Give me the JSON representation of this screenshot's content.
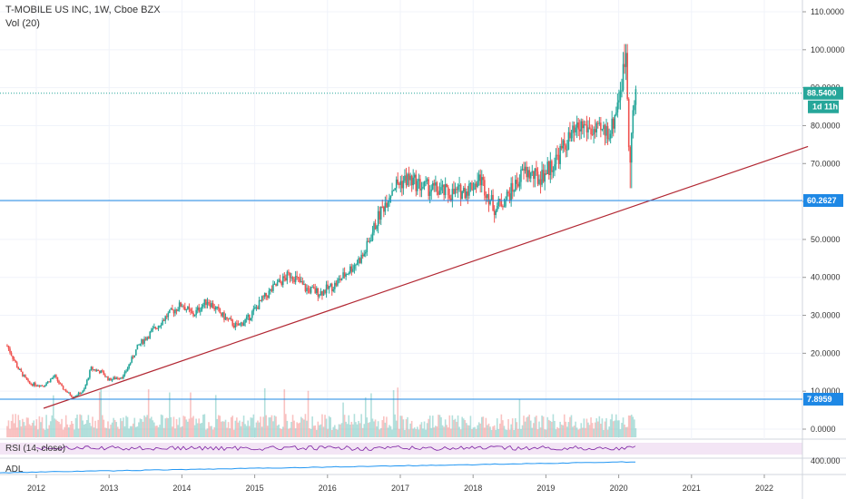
{
  "header": {
    "title": "T-MOBILE US INC, 1W, Cboe BZX",
    "volume_label": "Vol (20)",
    "rsi_label": "RSI (14, close)",
    "adl_label": "ADL"
  },
  "colors": {
    "up": "#26a69a",
    "down": "#ef5350",
    "trendline": "#b22833",
    "level_line": "#1e88e5",
    "price_line": "#26a69a",
    "rsi_line": "#7b1fa2",
    "rsi_band": "#f3e5f5",
    "adl_line": "#2196f3"
  },
  "chart_data": {
    "type": "candlestick",
    "title": "T-MOBILE US INC, 1W, Cboe BZX",
    "x_ticks": [
      "2012",
      "2013",
      "2014",
      "2015",
      "2016",
      "2017",
      "2018",
      "2019",
      "2020",
      "2021",
      "2022"
    ],
    "y_ticks": [
      "110.0000",
      "100.0000",
      "90.0000",
      "80.0000",
      "70.0000",
      "60.0000",
      "50.0000",
      "40.0000",
      "30.0000",
      "20.0000",
      "10.0000",
      "0.0000"
    ],
    "ylim": [
      0,
      110
    ],
    "price_path": [
      [
        2011.6,
        22
      ],
      [
        2011.75,
        16
      ],
      [
        2011.9,
        12
      ],
      [
        2012.1,
        11.5
      ],
      [
        2012.25,
        14
      ],
      [
        2012.35,
        11
      ],
      [
        2012.5,
        8.5
      ],
      [
        2012.65,
        10
      ],
      [
        2012.75,
        16
      ],
      [
        2012.9,
        15
      ],
      [
        2013.0,
        13
      ],
      [
        2013.2,
        14
      ],
      [
        2013.4,
        22
      ],
      [
        2013.6,
        26
      ],
      [
        2013.8,
        30
      ],
      [
        2014.0,
        33
      ],
      [
        2014.15,
        30
      ],
      [
        2014.35,
        34
      ],
      [
        2014.55,
        30
      ],
      [
        2014.75,
        27
      ],
      [
        2014.9,
        29
      ],
      [
        2015.1,
        34
      ],
      [
        2015.3,
        38
      ],
      [
        2015.5,
        41
      ],
      [
        2015.7,
        37
      ],
      [
        2015.9,
        36
      ],
      [
        2016.1,
        38
      ],
      [
        2016.3,
        42
      ],
      [
        2016.5,
        46
      ],
      [
        2016.7,
        56
      ],
      [
        2016.9,
        64
      ],
      [
        2017.1,
        66
      ],
      [
        2017.3,
        64
      ],
      [
        2017.5,
        63
      ],
      [
        2017.7,
        62
      ],
      [
        2017.9,
        63
      ],
      [
        2018.1,
        66
      ],
      [
        2018.3,
        58
      ],
      [
        2018.5,
        62
      ],
      [
        2018.7,
        68
      ],
      [
        2018.9,
        66
      ],
      [
        2019.1,
        70
      ],
      [
        2019.3,
        76
      ],
      [
        2019.5,
        80
      ],
      [
        2019.7,
        78
      ],
      [
        2019.9,
        79
      ],
      [
        2020.05,
        92
      ],
      [
        2020.1,
        100
      ],
      [
        2020.15,
        70
      ],
      [
        2020.2,
        84
      ],
      [
        2020.25,
        88.54
      ]
    ],
    "trendline": {
      "from": [
        2012.1,
        5.5
      ],
      "to": [
        2022.6,
        74.5
      ]
    },
    "horizontal_levels": [
      {
        "value": 60.2627,
        "label": "60.2627"
      },
      {
        "value": 7.8959,
        "label": "7.8959"
      }
    ],
    "last_price": {
      "value": 88.54,
      "label": "88.5400",
      "countdown": "1d 11h"
    },
    "rsi_axis": [
      "400.000"
    ]
  }
}
